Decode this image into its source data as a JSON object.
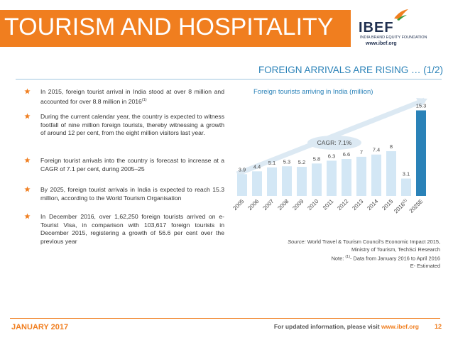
{
  "header": {
    "title": "TOURISM AND HOSPITALITY",
    "logo_text": "IBEF",
    "logo_sub": "INDIA BRAND EQUITY FOUNDATION",
    "logo_url": "www.ibef.org"
  },
  "subtitle": "FOREIGN ARRIVALS ARE RISING … (1/2)",
  "bullets": [
    {
      "text": "In 2015, foreign tourist arrival in India stood at over 8 million and accounted for over 8.8 million in 2016",
      "sup": "(1)"
    },
    {
      "text": "During the current calendar year, the country is expected to witness footfall of nine million foreign tourists, thereby witnessing a growth of around 12 per cent, from the eight million visitors last year."
    },
    {
      "text": "Foreign tourist arrivals into the country is forecast to increase at a CAGR of 7.1 per cent, during 2005–25"
    },
    {
      "text": "By 2025, foreign tourist arrivals in India is expected to reach 15.3 million, according to the World Tourism Organisation"
    },
    {
      "text": "In December 2016, over 1,62,250 foreign tourists arrived on e-Tourist Visa, in comparison with 103,617 foreign tourists in December 2015, registering a growth of 56.6 per cent over the previous year"
    }
  ],
  "chart_data": {
    "type": "bar",
    "title": "Foreign tourists arriving in India (million)",
    "categories": [
      "2005",
      "2006",
      "2007",
      "2008",
      "2009",
      "2010",
      "2011",
      "2012",
      "2013",
      "2014",
      "2015",
      "2016",
      "2025E"
    ],
    "category_sups": [
      "",
      "",
      "",
      "",
      "",
      "",
      "",
      "",
      "",
      "",
      "",
      "(1)",
      ""
    ],
    "values": [
      3.9,
      4.4,
      5.1,
      5.3,
      5.2,
      5.8,
      6.3,
      6.6,
      7,
      7.4,
      8,
      3.1,
      15.3
    ],
    "value_labels": [
      "3.9",
      "4.4",
      "5.1",
      "5.3",
      "5.2",
      "5.8",
      "6.3",
      "6.6",
      "7",
      "7.4",
      "8",
      "3.1",
      "15.3"
    ],
    "highlight_index": 12,
    "annotation": "CAGR: 7.1%",
    "ylim": [
      0,
      16
    ],
    "colors": {
      "bar": "#d3e7f5",
      "highlight": "#2a82b8"
    }
  },
  "source": {
    "label": "Source:",
    "line1": " World Travel & Tourism Council's Economic Impact 2015,",
    "line2": "Ministry of Tourism, TechSci Research",
    "line3_prefix": "Note: ",
    "line3_sup": "(1)",
    "line3": "- Data from January 2016 to April 2016",
    "line4": "E- Estimated"
  },
  "footer": {
    "date": "JANUARY 2017",
    "note": "For updated information, please visit ",
    "url": "www.ibef.org",
    "page": "12"
  },
  "colors": {
    "accent": "#f07e1f",
    "blue": "#2a82b8"
  }
}
